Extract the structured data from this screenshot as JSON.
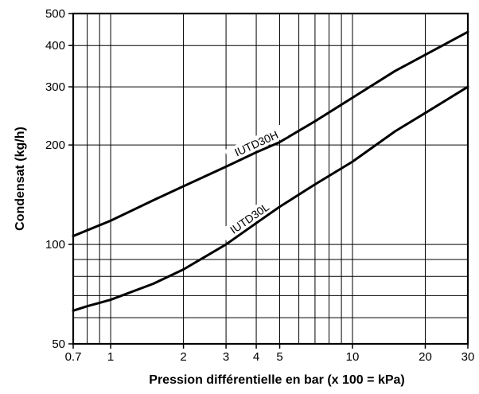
{
  "chart_data": {
    "type": "line",
    "title": "",
    "xlabel": "Pression différentielle en bar (x 100 = kPa)",
    "ylabel": "Condensat (kg/h)",
    "xscale": "log",
    "yscale": "log",
    "xlim": [
      0.7,
      30
    ],
    "ylim": [
      50,
      500
    ],
    "grid": true,
    "x_ticks": [
      0.7,
      1,
      2,
      3,
      4,
      5,
      10,
      20,
      30
    ],
    "x_tick_labels": [
      "0.7",
      "1",
      "2",
      "3",
      "4",
      "5",
      "10",
      "20",
      "30"
    ],
    "x_gridlines": [
      0.7,
      0.8,
      0.9,
      1,
      2,
      3,
      4,
      5,
      6,
      7,
      8,
      9,
      10,
      20,
      30
    ],
    "y_ticks": [
      50,
      100,
      200,
      300,
      400,
      500
    ],
    "y_tick_labels": [
      "50",
      "100",
      "200",
      "300",
      "400",
      "500"
    ],
    "y_gridlines": [
      50,
      60,
      70,
      80,
      90,
      100,
      200,
      300,
      400,
      500
    ],
    "series": [
      {
        "name": "IUTD30H",
        "x": [
          0.7,
          1,
          1.5,
          2,
          3,
          4,
          5,
          7,
          10,
          15,
          20,
          30
        ],
        "y": [
          106,
          118,
          136,
          150,
          172,
          190,
          204,
          236,
          278,
          335,
          375,
          440
        ]
      },
      {
        "name": "IUTD30L",
        "x": [
          0.7,
          0.8,
          1,
          1.5,
          2,
          3,
          4,
          5,
          7,
          10,
          15,
          20,
          30
        ],
        "y": [
          63,
          65,
          68,
          76,
          84,
          100,
          116,
          130,
          152,
          178,
          220,
          250,
          300
        ]
      }
    ],
    "line_color": "#000000"
  }
}
